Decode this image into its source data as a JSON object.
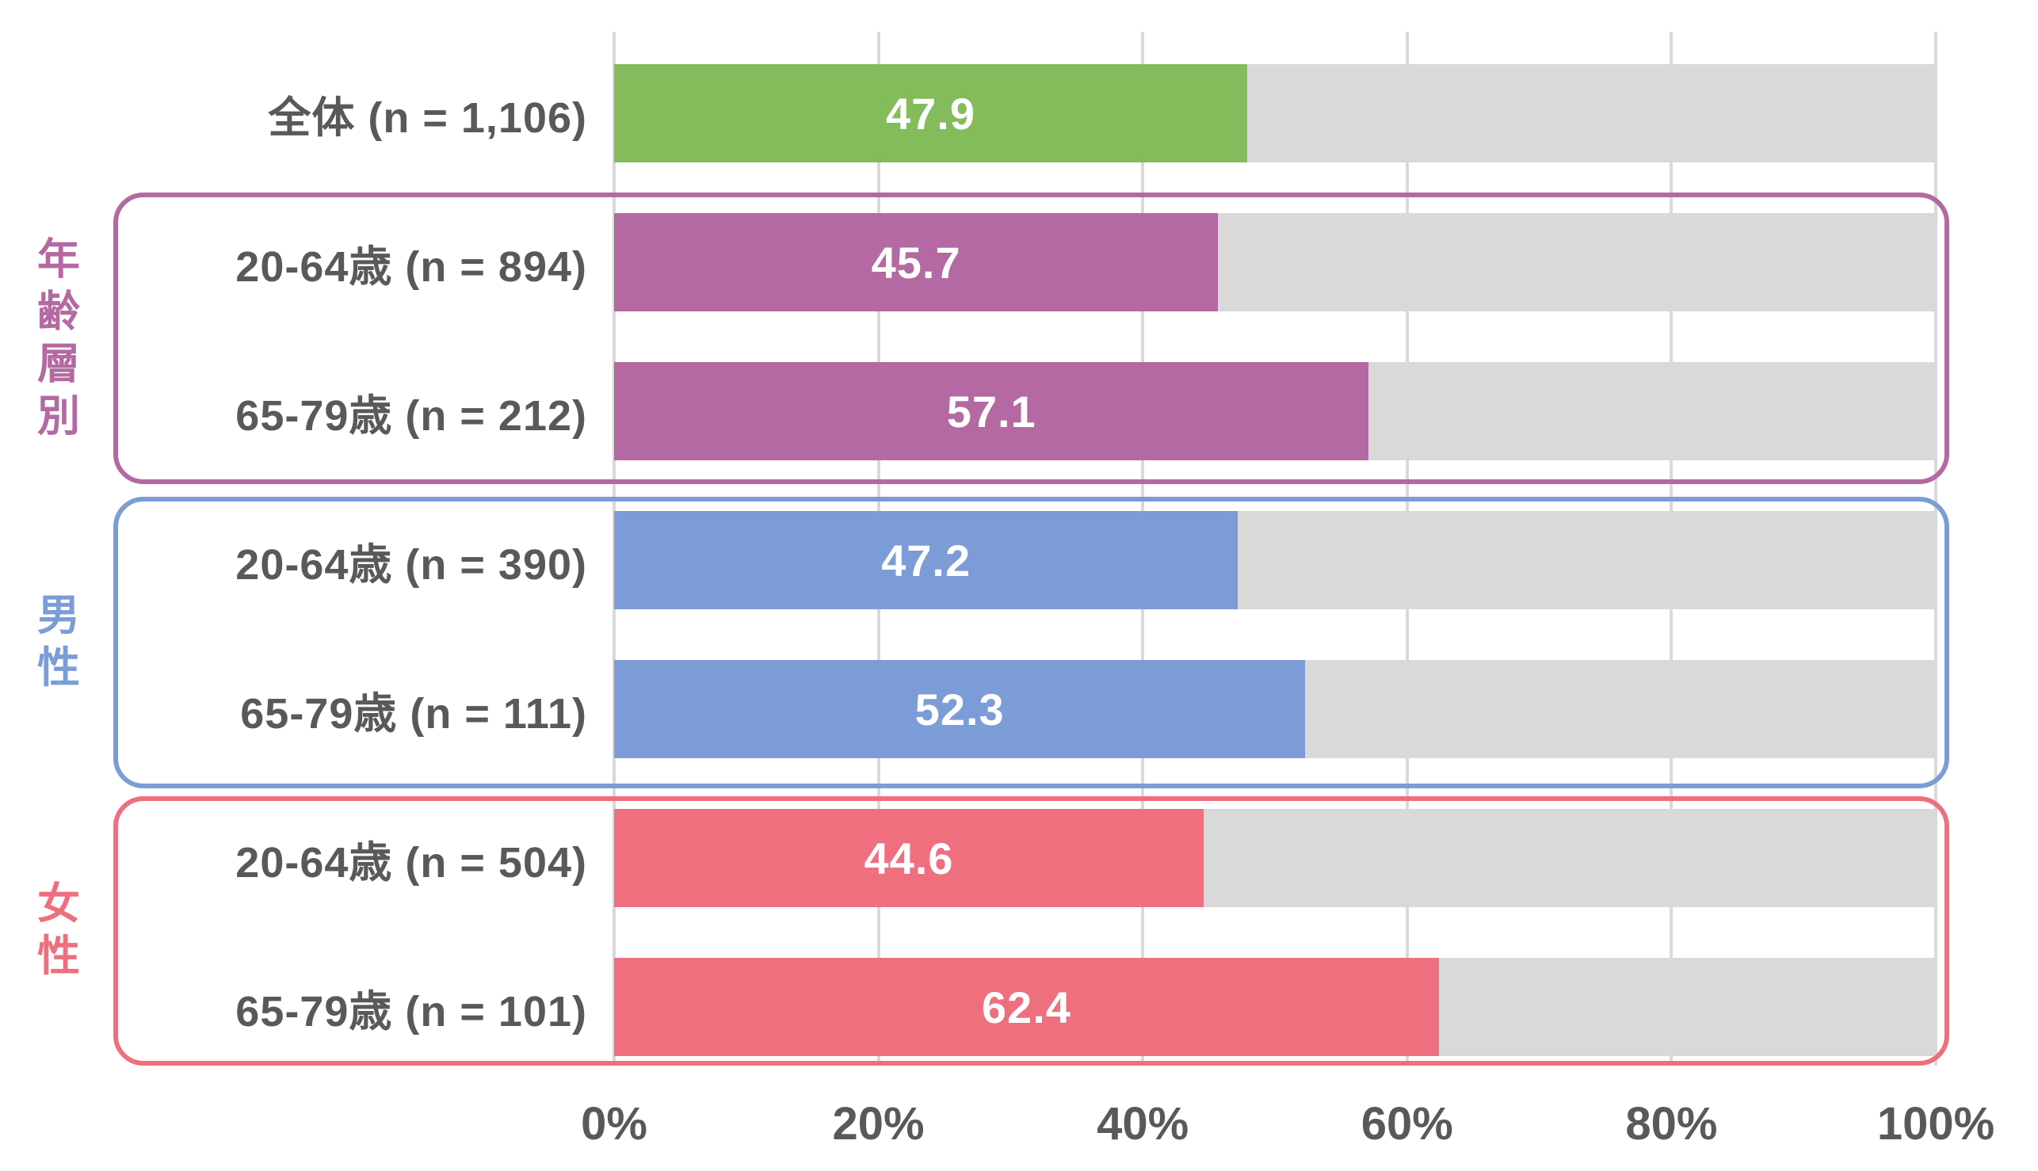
{
  "chart_data": {
    "type": "bar",
    "orientation": "horizontal",
    "title": "",
    "xlabel": "",
    "ylabel": "",
    "unit": "%",
    "xlim": [
      0,
      100
    ],
    "grid": true,
    "x_ticks": [
      "0%",
      "20%",
      "40%",
      "60%",
      "80%",
      "100%"
    ],
    "track_color": "#D9D9D9",
    "gridline_color": "#D9D9D9",
    "label_text_color": "#595959",
    "value_text_color": "#FFFFFF",
    "groups": [
      {
        "name": "",
        "color": "#84BC5C",
        "boxed": false,
        "rows": [
          {
            "label": "全体 (n = 1,106)",
            "value": 47.9
          }
        ]
      },
      {
        "name": "年齢層別",
        "color": "#B469A2",
        "boxed": true,
        "rows": [
          {
            "label": "20-64歳 (n = 894)",
            "value": 45.7
          },
          {
            "label": "65-79歳 (n = 212)",
            "value": 57.1
          }
        ]
      },
      {
        "name": "男性",
        "color": "#7C9CD7",
        "boxed": true,
        "rows": [
          {
            "label": "20-64歳 (n = 390)",
            "value": 47.2
          },
          {
            "label": "65-79歳 (n = 111)",
            "value": 52.3
          }
        ]
      },
      {
        "name": "女性",
        "color": "#EF6F7E",
        "boxed": true,
        "rows": [
          {
            "label": "20-64歳 (n = 504)",
            "value": 44.6
          },
          {
            "label": "65-79歳 (n = 101)",
            "value": 62.4
          }
        ]
      }
    ]
  }
}
